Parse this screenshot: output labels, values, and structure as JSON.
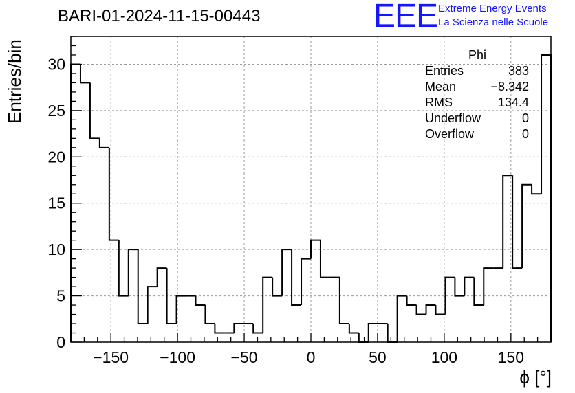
{
  "title": "BARI-01-2024-11-15-00443",
  "logo": {
    "text": "EEE",
    "line1": "Extreme Energy Events",
    "line2": "La Scienza nelle Scuole",
    "color": "#1515ff"
  },
  "stats_box": {
    "title": "Phi",
    "rows": [
      {
        "label": "Entries",
        "value": "383"
      },
      {
        "label": "Mean",
        "value": "−8.342"
      },
      {
        "label": "RMS",
        "value": "134.4"
      },
      {
        "label": "Underflow",
        "value": "0"
      },
      {
        "label": "Overflow",
        "value": "0"
      }
    ]
  },
  "chart_data": {
    "type": "bar",
    "style": "step-histogram",
    "xlabel": "ϕ [°]",
    "ylabel": "Entries/bin",
    "xlim": [
      -180,
      180
    ],
    "ylim": [
      0,
      33
    ],
    "bin_width": 7.2,
    "xticks": [
      -150,
      -100,
      -50,
      0,
      50,
      100,
      150
    ],
    "xtick_labels": [
      "−150",
      "−100",
      "−50",
      "0",
      "50",
      "100",
      "150"
    ],
    "yticks": [
      0,
      5,
      10,
      15,
      20,
      25,
      30
    ],
    "grid": true,
    "values": [
      30,
      28,
      22,
      21,
      11,
      5,
      10,
      2,
      6,
      8,
      2,
      5,
      5,
      4,
      2,
      1,
      1,
      2,
      2,
      1,
      7,
      5,
      10,
      4,
      9,
      11,
      7,
      7,
      2,
      1,
      0,
      2,
      2,
      0,
      5,
      4,
      3,
      4,
      3,
      7,
      5,
      7,
      4,
      8,
      8,
      18,
      8,
      17,
      16,
      31
    ],
    "line_color": "#000000"
  }
}
